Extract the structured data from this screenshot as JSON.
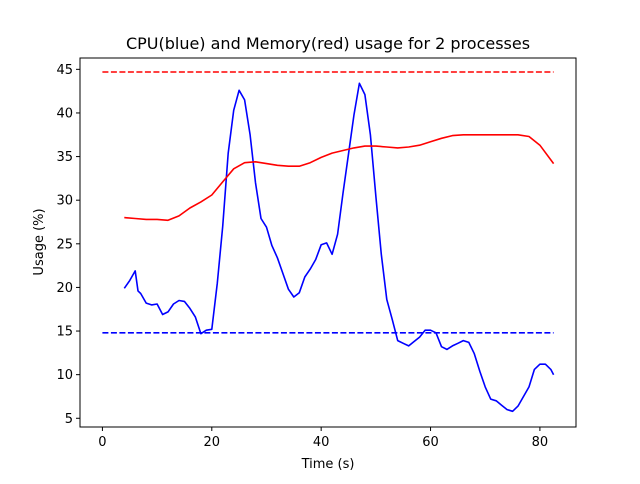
{
  "chart_data": {
    "type": "line",
    "title": "CPU(blue) and Memory(red) usage for 2 processes",
    "xlabel": "Time (s)",
    "ylabel": "Usage (%)",
    "xlim": [
      -4.1,
      86.6
    ],
    "ylim": [
      4.0,
      46.3
    ],
    "x_ticks": [
      0,
      20,
      40,
      60,
      80
    ],
    "y_ticks": [
      5,
      10,
      15,
      20,
      25,
      30,
      35,
      40,
      45
    ],
    "grid": false,
    "legend": "none",
    "series": [
      {
        "color": "#0000ff",
        "style": "solid",
        "x": [
          4,
          5,
          6,
          6.5,
          7,
          8,
          9,
          10,
          11,
          12,
          13,
          14,
          15,
          16,
          17,
          18,
          19,
          20,
          21,
          22,
          23,
          24,
          25,
          26,
          27,
          28,
          29,
          30,
          31,
          32,
          33,
          34,
          35,
          36,
          37,
          38,
          39,
          40,
          41,
          42,
          43,
          44,
          45,
          46,
          47,
          48,
          49,
          50,
          51,
          52,
          53,
          54,
          55,
          56,
          57,
          58,
          59,
          60,
          61,
          62,
          63,
          64,
          65,
          66,
          67,
          68,
          69,
          70,
          71,
          72,
          73,
          74,
          75,
          76,
          77,
          78,
          79,
          80,
          81,
          82,
          82.5
        ],
        "y": [
          19.9,
          20.8,
          21.9,
          19.6,
          19.3,
          18.2,
          18.0,
          18.1,
          16.9,
          17.2,
          18.1,
          18.5,
          18.4,
          17.6,
          16.6,
          14.7,
          15.1,
          15.2,
          20.5,
          27.0,
          35.4,
          40.3,
          42.6,
          41.5,
          37.5,
          32.0,
          27.9,
          26.9,
          24.8,
          23.4,
          21.6,
          19.8,
          18.9,
          19.4,
          21.2,
          22.1,
          23.2,
          24.9,
          25.1,
          23.8,
          26.1,
          30.8,
          35.3,
          39.8,
          43.4,
          42.1,
          37.5,
          30.4,
          23.8,
          18.6,
          16.3,
          13.9,
          13.6,
          13.3,
          13.8,
          14.3,
          15.1,
          15.1,
          14.8,
          13.2,
          12.9,
          13.3,
          13.6,
          13.9,
          13.7,
          12.4,
          10.4,
          8.6,
          7.2,
          7.0,
          6.5,
          6.0,
          5.8,
          6.4,
          7.5,
          8.6,
          10.6,
          11.2,
          11.2,
          10.6,
          10.0
        ]
      },
      {
        "color": "#ff0000",
        "style": "solid",
        "x": [
          4,
          6,
          8,
          10,
          12,
          14,
          16,
          18,
          20,
          22,
          24,
          26,
          28,
          30,
          32,
          34,
          36,
          38,
          40,
          42,
          44,
          46,
          48,
          50,
          52,
          54,
          56,
          58,
          60,
          62,
          64,
          66,
          68,
          70,
          72,
          74,
          76,
          78,
          80,
          82.5
        ],
        "y": [
          28.0,
          27.9,
          27.8,
          27.8,
          27.7,
          28.2,
          29.1,
          29.8,
          30.6,
          32.1,
          33.6,
          34.3,
          34.4,
          34.2,
          34.0,
          33.9,
          33.9,
          34.3,
          34.9,
          35.4,
          35.7,
          36.0,
          36.2,
          36.2,
          36.1,
          36.0,
          36.1,
          36.3,
          36.7,
          37.1,
          37.4,
          37.5,
          37.5,
          37.5,
          37.5,
          37.5,
          37.5,
          37.3,
          36.3,
          34.2
        ]
      },
      {
        "color": "#0000ff",
        "style": "dashed",
        "x": [
          0,
          82.5
        ],
        "y": [
          14.8,
          14.8
        ]
      },
      {
        "color": "#ff0000",
        "style": "dashed",
        "x": [
          0,
          82.5
        ],
        "y": [
          44.7,
          44.7
        ]
      }
    ]
  }
}
